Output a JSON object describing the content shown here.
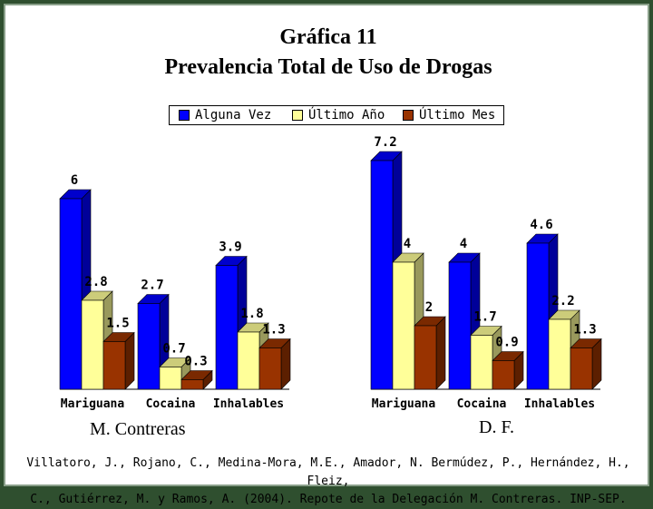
{
  "title": "Gráfica 11",
  "subtitle": "Prevalencia Total de Uso de Drogas",
  "legend": [
    {
      "label": "Alguna Vez",
      "color": "#0000ff"
    },
    {
      "label": "Último Año",
      "color": "#ffff99"
    },
    {
      "label": "Último Mes",
      "color": "#993300"
    }
  ],
  "groups": [
    "M. Contreras",
    "D. F."
  ],
  "source_lines": [
    "Villatoro, J., Rojano, C., Medina-Mora, M.E., Amador, N. Bermúdez, P., Hernández, H., Fleiz,",
    "C., Gutiérrez, M. y Ramos, A. (2004). Repote de la Delegación M. Contreras. INP-SEP."
  ],
  "chart_data": [
    {
      "type": "bar",
      "group": "M. Contreras",
      "categories": [
        "Mariguana",
        "Cocaina",
        "Inhalables"
      ],
      "series": [
        {
          "name": "Alguna Vez",
          "values": [
            6,
            2.7,
            3.9
          ]
        },
        {
          "name": "Último Año",
          "values": [
            2.8,
            0.7,
            1.8
          ]
        },
        {
          "name": "Último Mes",
          "values": [
            1.5,
            0.3,
            1.3
          ]
        }
      ],
      "grid": false
    },
    {
      "type": "bar",
      "group": "D. F.",
      "categories": [
        "Mariguana",
        "Cocaina",
        "Inhalables"
      ],
      "series": [
        {
          "name": "Alguna Vez",
          "values": [
            7.2,
            4,
            4.6
          ]
        },
        {
          "name": "Último Año",
          "values": [
            4,
            1.7,
            2.2
          ]
        },
        {
          "name": "Último Mes",
          "values": [
            2,
            0.9,
            1.3
          ]
        }
      ],
      "grid": false
    }
  ]
}
